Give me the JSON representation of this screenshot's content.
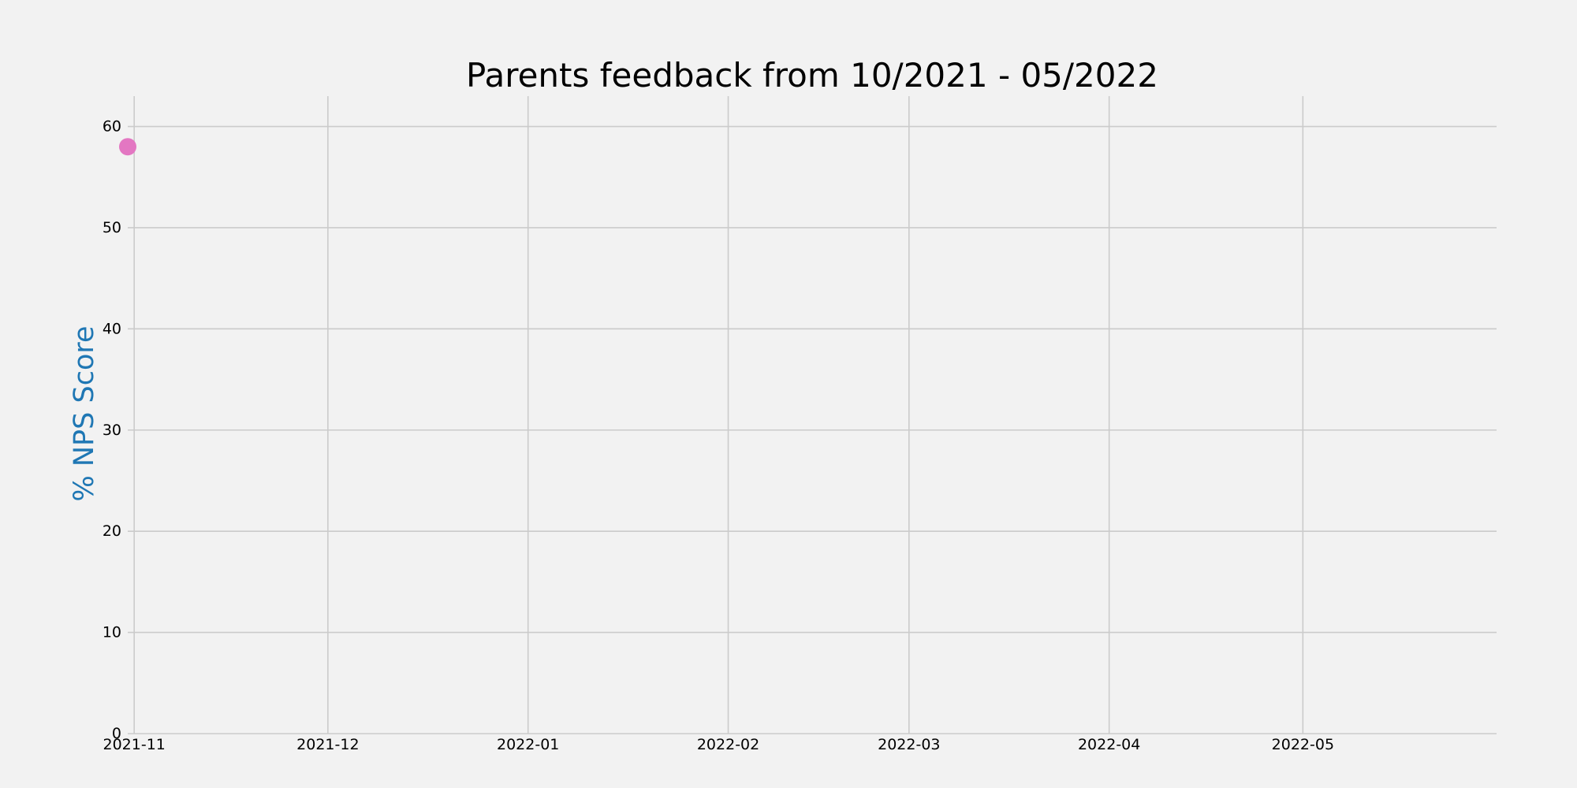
{
  "chart_data": {
    "type": "scatter",
    "title": "Parents feedback from 10/2021 - 05/2022",
    "xlabel": "",
    "ylabel": "% NPS Score",
    "x_tick_labels": [
      "2021-11",
      "2021-12",
      "2022-01",
      "2022-02",
      "2022-03",
      "2022-04",
      "2022-05"
    ],
    "x_tick_dates": [
      "2021-11-01",
      "2021-12-01",
      "2022-01-01",
      "2022-02-01",
      "2022-03-01",
      "2022-04-01",
      "2022-05-01"
    ],
    "xlim": [
      "2021-10-31",
      "2022-05-31"
    ],
    "y_ticks": [
      0,
      10,
      20,
      30,
      40,
      50,
      60
    ],
    "ylim": [
      0,
      63
    ],
    "grid": true,
    "series": [
      {
        "color": "#e377c2",
        "points": [
          {
            "x": "2021-10-31",
            "y": 58
          }
        ]
      }
    ]
  },
  "colors": {
    "background": "#f2f2f2",
    "grid": "#cbcbcb",
    "ylabel": "#1f77b4",
    "text": "#000000"
  }
}
